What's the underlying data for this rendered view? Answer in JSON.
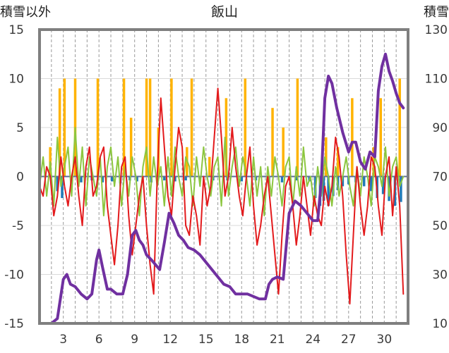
{
  "chart_data": {
    "type": "line",
    "title": "飯山",
    "y_left_label": "積雪以外",
    "y_right_label": "積雪",
    "y_left_ticks": [
      15,
      10,
      5,
      0,
      -5,
      -10,
      -15
    ],
    "y_right_ticks": [
      130,
      110,
      90,
      70,
      50,
      30,
      10
    ],
    "y_left_range": [
      -15,
      15
    ],
    "y_right_range": [
      10,
      130
    ],
    "x_range": [
      1,
      32
    ],
    "x_ticks": [
      3,
      6,
      9,
      12,
      15,
      18,
      21,
      24,
      27,
      30
    ],
    "grid": "vertical dashed lines each day",
    "colors": {
      "temp_line": "#e31a1c",
      "temp_anomaly": "#8cc63f",
      "precip_bar": "#ffb300",
      "sunshine_bar": "#1f7ab8",
      "snow_depth": "#7030a0",
      "frame": "#7f7f7f"
    },
    "series": [
      {
        "type": "bar",
        "axis": "left",
        "color_key": "precip_bar",
        "x": [
          1.9,
          2.7,
          3.1,
          4.0,
          5.9,
          8.1,
          8.7,
          10.0,
          10.3,
          11.0,
          12.1,
          13.4,
          13.8,
          15.3,
          16.7,
          18.3,
          20.6,
          21.5,
          22.7,
          25.1,
          26.1,
          27.3,
          29.1,
          29.7,
          31.3
        ],
        "values": [
          3,
          9,
          10,
          10,
          10,
          10,
          6,
          10,
          10,
          5,
          10,
          3,
          10,
          2,
          8,
          10,
          7,
          5,
          10,
          4,
          3,
          8,
          3,
          8,
          10
        ]
      },
      {
        "type": "bar",
        "axis": "left",
        "color_key": "sunshine_bar",
        "x": [
          2.5,
          2.9,
          3.7,
          4.5,
          5.4,
          6.3,
          7.1,
          7.8,
          8.6,
          9.2,
          10.4,
          11.5,
          12.4,
          13.3,
          14.5,
          15.6,
          16.8,
          18.0,
          19.2,
          20.3,
          21.4,
          22.6,
          23.7,
          24.2,
          24.6,
          24.9,
          25.3,
          25.7,
          26.1,
          26.5,
          27.0,
          27.6,
          28.3,
          28.9,
          29.4,
          29.9,
          30.4,
          30.9,
          31.4
        ],
        "values": [
          -1.5,
          -2.2,
          -0.8,
          -0.6,
          -0.4,
          -0.6,
          -0.5,
          -0.7,
          -0.4,
          -0.5,
          -0.6,
          -0.4,
          -0.5,
          -0.4,
          -0.5,
          -0.4,
          -0.4,
          -0.5,
          -0.4,
          -0.5,
          -0.6,
          -0.4,
          -0.5,
          -2.2,
          -3.0,
          -2.5,
          -3.0,
          -2.0,
          -1.4,
          -1.0,
          -0.8,
          -0.6,
          -1.0,
          -1.5,
          -2.2,
          -1.8,
          -2.5,
          -3.0,
          -2.6
        ]
      },
      {
        "type": "line",
        "axis": "left",
        "color_key": "temp_anomaly",
        "width": 2,
        "x": [
          1.0,
          1.3,
          1.6,
          1.9,
          2.2,
          2.5,
          2.8,
          3.1,
          3.4,
          3.7,
          4.0,
          4.3,
          4.6,
          4.9,
          5.2,
          5.5,
          5.8,
          6.1,
          6.4,
          6.7,
          7.0,
          7.3,
          7.6,
          7.9,
          8.2,
          8.5,
          8.8,
          9.1,
          9.4,
          9.7,
          10.0,
          10.3,
          10.6,
          10.9,
          11.2,
          11.5,
          11.8,
          12.1,
          12.4,
          12.7,
          13.0,
          13.3,
          13.6,
          13.9,
          14.2,
          14.5,
          14.8,
          15.1,
          15.4,
          15.7,
          16.0,
          16.3,
          16.6,
          16.9,
          17.2,
          17.5,
          17.8,
          18.1,
          18.4,
          18.7,
          19.0,
          19.3,
          19.6,
          19.9,
          20.2,
          20.5,
          20.8,
          21.1,
          21.4,
          21.7,
          22.0,
          22.3,
          22.6,
          22.9,
          23.2,
          23.5,
          23.8,
          24.1,
          24.4,
          24.7,
          25.0,
          25.3,
          25.6,
          25.9,
          26.2,
          26.5,
          26.8,
          27.1,
          27.4,
          27.7,
          28.0,
          28.3,
          28.6,
          28.9,
          29.2,
          29.5,
          29.8,
          30.1,
          30.4,
          30.7,
          31.0,
          31.3,
          31.6
        ],
        "values": [
          -1,
          2,
          -2,
          1.5,
          -3,
          4,
          -1,
          1,
          3,
          -2,
          5,
          -1,
          3,
          -3,
          2,
          0,
          -2,
          2,
          -4,
          1,
          3,
          -1,
          2,
          -3,
          1,
          -2,
          2,
          0,
          -4,
          1,
          3,
          -2,
          2,
          -1,
          1,
          -3,
          2,
          -2,
          3,
          0,
          -2,
          2,
          1,
          -3,
          2,
          -1,
          3,
          0,
          -2,
          1,
          2,
          -3,
          4,
          -2,
          1,
          3,
          -1,
          2,
          0,
          -3,
          2,
          -2,
          1,
          -4,
          1,
          -2,
          2,
          0,
          -3,
          1,
          2,
          -3,
          1,
          -2,
          3,
          -1,
          0,
          -3,
          1,
          -2,
          2,
          0,
          -3,
          1,
          -2,
          0,
          2,
          -1,
          -3,
          1,
          -2,
          2,
          0,
          -3,
          2,
          1,
          -1,
          3,
          -2,
          1,
          2,
          -1,
          0
        ]
      },
      {
        "type": "line",
        "axis": "left",
        "color_key": "temp_line",
        "width": 2,
        "x": [
          1.0,
          1.3,
          1.6,
          1.9,
          2.2,
          2.5,
          2.8,
          3.1,
          3.4,
          3.7,
          4.0,
          4.3,
          4.6,
          4.9,
          5.2,
          5.5,
          5.8,
          6.1,
          6.4,
          6.7,
          7.0,
          7.3,
          7.6,
          7.9,
          8.2,
          8.5,
          8.8,
          9.1,
          9.4,
          9.7,
          10.0,
          10.3,
          10.6,
          10.9,
          11.2,
          11.5,
          11.8,
          12.1,
          12.4,
          12.7,
          13.0,
          13.3,
          13.6,
          13.9,
          14.2,
          14.5,
          14.8,
          15.1,
          15.4,
          15.7,
          16.0,
          16.3,
          16.6,
          16.9,
          17.2,
          17.5,
          17.8,
          18.1,
          18.4,
          18.7,
          19.0,
          19.3,
          19.6,
          19.9,
          20.2,
          20.5,
          20.8,
          21.1,
          21.4,
          21.7,
          22.0,
          22.3,
          22.6,
          22.9,
          23.2,
          23.5,
          23.8,
          24.1,
          24.4,
          24.7,
          25.0,
          25.3,
          25.6,
          25.9,
          26.2,
          26.5,
          26.8,
          27.1,
          27.4,
          27.7,
          28.0,
          28.3,
          28.6,
          28.9,
          29.2,
          29.5,
          29.8,
          30.1,
          30.4,
          30.7,
          31.0,
          31.3,
          31.6
        ],
        "values": [
          -1,
          -2,
          1,
          0,
          -4,
          -2,
          2,
          -1,
          -3,
          0,
          2,
          -2,
          -5,
          1,
          3,
          -2,
          -1,
          2,
          3,
          -3,
          -6,
          -9,
          -5,
          1,
          2,
          -4,
          -8,
          -5,
          -2,
          0,
          -5,
          -9,
          -12,
          0,
          8,
          3,
          -2,
          -4,
          1,
          5,
          3,
          -5,
          -6,
          -2,
          -4,
          -7,
          0,
          -3,
          -1,
          4,
          9,
          4,
          -2,
          0,
          5,
          1,
          -2,
          -4,
          0,
          3,
          -3,
          -7,
          -5,
          -2,
          0,
          -4,
          -8,
          -12,
          -6,
          -1,
          0,
          -3,
          -7,
          -4,
          0,
          -3,
          -6,
          -2,
          -4,
          -5,
          -1,
          -3,
          -1,
          4,
          2,
          -2,
          -8,
          -13,
          -6,
          1,
          -3,
          -6,
          -3,
          2,
          1,
          -3,
          -6,
          0,
          2,
          -4,
          1,
          -3,
          -12
        ]
      },
      {
        "type": "line",
        "axis": "right",
        "color_key": "snow_depth",
        "width": 4,
        "x": [
          1.0,
          1.5,
          2.0,
          2.5,
          3.0,
          3.3,
          3.6,
          4.0,
          4.5,
          5.0,
          5.4,
          5.8,
          6.0,
          6.3,
          6.7,
          7.0,
          7.5,
          8.0,
          8.4,
          8.8,
          9.1,
          9.4,
          9.7,
          10.0,
          10.4,
          11.1,
          11.5,
          11.9,
          12.3,
          12.7,
          13.1,
          13.5,
          14.0,
          14.5,
          15.0,
          15.5,
          16.0,
          16.5,
          17.0,
          17.5,
          18.0,
          18.5,
          19.0,
          19.5,
          20.0,
          20.3,
          20.6,
          21.0,
          21.5,
          22.0,
          22.5,
          23.0,
          23.5,
          24.0,
          24.4,
          24.7,
          25.0,
          25.3,
          25.6,
          26.0,
          26.5,
          27.0,
          27.3,
          27.6,
          28.0,
          28.4,
          28.8,
          29.2,
          29.5,
          29.8,
          30.1,
          30.4,
          30.7,
          31.0,
          31.3,
          31.6
        ],
        "values": [
          10,
          10,
          10,
          12,
          28,
          30,
          26,
          25,
          22,
          20,
          22,
          36,
          40,
          33,
          24,
          24,
          22,
          22,
          30,
          46,
          48,
          44,
          42,
          38,
          36,
          32,
          43,
          55,
          51,
          46,
          44,
          41,
          40,
          38,
          35,
          32,
          29,
          26,
          25,
          22,
          22,
          22,
          21,
          20,
          20,
          26,
          28,
          29,
          28,
          55,
          60,
          58,
          55,
          52,
          52,
          68,
          102,
          111,
          108,
          98,
          88,
          80,
          84,
          84,
          76,
          73,
          80,
          78,
          105,
          115,
          120,
          113,
          109,
          104,
          100,
          98
        ]
      }
    ]
  }
}
